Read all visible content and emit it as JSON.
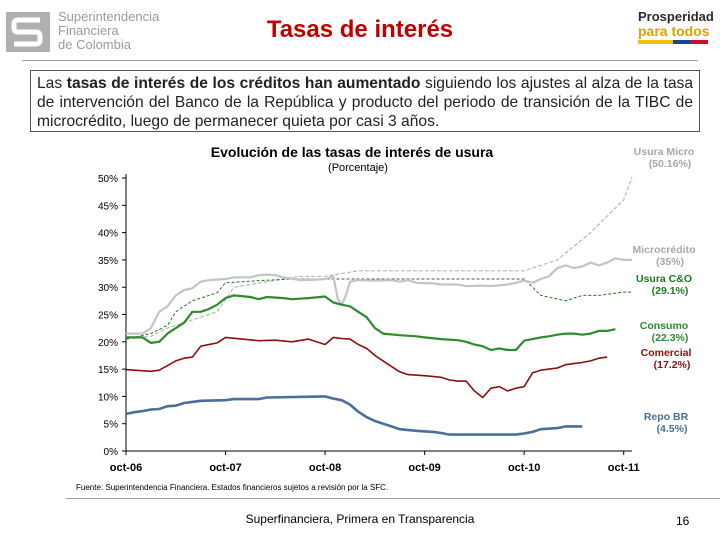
{
  "header": {
    "org_lines": [
      "Superintendencia",
      "Financiera",
      "de Colombia"
    ],
    "title": "Tasas de interés",
    "slogan_line1": "Prosperidad",
    "slogan_line2": "para todos"
  },
  "intro": {
    "part1": "Las ",
    "bold": "tasas de interés de los créditos han aumentado",
    "part2": " siguiendo los ajustes al alza de la tasa de intervención del Banco de la República y producto del periodo de transición de la TIBC de microcrédito, luego de permanecer quieta por casi 3 años."
  },
  "chart_data": {
    "type": "line",
    "title": "Evolución de las tasas de interés de usura",
    "subtitle": "(Porcentaje)",
    "xlabel": "",
    "ylabel": "",
    "ylim": [
      0,
      50
    ],
    "yticks": [
      "0%",
      "5%",
      "10%",
      "15%",
      "20%",
      "25%",
      "30%",
      "35%",
      "40%",
      "45%",
      "50%"
    ],
    "xticks": [
      "oct-06",
      "oct-07",
      "oct-08",
      "oct-09",
      "oct-10",
      "oct-11"
    ],
    "x_months_range": [
      0,
      61
    ],
    "grid": false,
    "source": "Fuente: Superintendencia Financiera. Estados financieros sujetos a revisión por la SFC.",
    "series": [
      {
        "name": "Usura Micro",
        "label_line1": "Usura Micro",
        "label_line2": "(50.16%)",
        "color": "#b8b8b8",
        "width": 1.2,
        "dash": "4,2",
        "points": [
          [
            0,
            20.5
          ],
          [
            3,
            21
          ],
          [
            5,
            22.5
          ],
          [
            7,
            23.5
          ],
          [
            9,
            24.5
          ],
          [
            11,
            25.5
          ],
          [
            13,
            30
          ],
          [
            17,
            31
          ],
          [
            21,
            32
          ],
          [
            24,
            32
          ],
          [
            28,
            33
          ],
          [
            32,
            33
          ],
          [
            36,
            33
          ],
          [
            40,
            33
          ],
          [
            44,
            33
          ],
          [
            48,
            33
          ],
          [
            52,
            35
          ],
          [
            54,
            37.5
          ],
          [
            56,
            40
          ],
          [
            58,
            43
          ],
          [
            60,
            46
          ],
          [
            61,
            50.16
          ]
        ]
      },
      {
        "name": "Usura C&O",
        "label_line1": "Usura C&O",
        "label_line2": "(29.1%)",
        "color": "#1e7a1e",
        "width": 1.0,
        "dash": "3,2",
        "points": [
          [
            0,
            20.5
          ],
          [
            3,
            21.5
          ],
          [
            5,
            23
          ],
          [
            6,
            25.5
          ],
          [
            8,
            27.5
          ],
          [
            11,
            29
          ],
          [
            12,
            30.8
          ],
          [
            16,
            31.2
          ],
          [
            20,
            31.5
          ],
          [
            24,
            31.5
          ],
          [
            28,
            31.5
          ],
          [
            32,
            31.5
          ],
          [
            36,
            31.5
          ],
          [
            40,
            31.5
          ],
          [
            44,
            31.5
          ],
          [
            48,
            31.5
          ],
          [
            50,
            28.5
          ],
          [
            53,
            27.5
          ],
          [
            55,
            28.5
          ],
          [
            57,
            28.5
          ],
          [
            60,
            29.1
          ],
          [
            61,
            29.1
          ]
        ]
      },
      {
        "name": "Microcrédito",
        "label_line1": "Microcrédito",
        "label_line2": "(35%)",
        "color": "#c4c4c4",
        "width": 2.2,
        "dash": "",
        "points": [
          [
            0,
            21.5
          ],
          [
            2,
            21.5
          ],
          [
            3,
            22.5
          ],
          [
            4,
            25.5
          ],
          [
            5,
            26.5
          ],
          [
            6,
            28.5
          ],
          [
            7,
            29.5
          ],
          [
            8,
            29.8
          ],
          [
            9,
            31
          ],
          [
            10,
            31.3
          ],
          [
            12,
            31.5
          ],
          [
            13,
            31.8
          ],
          [
            14,
            31.8
          ],
          [
            15,
            31.8
          ],
          [
            16,
            32.2
          ],
          [
            17,
            32.3
          ],
          [
            18,
            32.2
          ],
          [
            19,
            31.8
          ],
          [
            21,
            31.3
          ],
          [
            23,
            31.4
          ],
          [
            24,
            31.5
          ],
          [
            25,
            32
          ],
          [
            25.5,
            28
          ],
          [
            26,
            26.8
          ],
          [
            26.5,
            28.5
          ],
          [
            27,
            31
          ],
          [
            28,
            31.3
          ],
          [
            30,
            31.2
          ],
          [
            32,
            31.3
          ],
          [
            33,
            31
          ],
          [
            34,
            31.3
          ],
          [
            35,
            30.8
          ],
          [
            37,
            30.7
          ],
          [
            38,
            30.5
          ],
          [
            40,
            30.5
          ],
          [
            41,
            30.2
          ],
          [
            43,
            30.3
          ],
          [
            44,
            30.2
          ],
          [
            46,
            30.5
          ],
          [
            47,
            30.8
          ],
          [
            48,
            31.2
          ],
          [
            49,
            30.8
          ],
          [
            50,
            31.5
          ],
          [
            51,
            32
          ],
          [
            52,
            33.5
          ],
          [
            53,
            34
          ],
          [
            54,
            33.5
          ],
          [
            55,
            33.8
          ],
          [
            56,
            34.5
          ],
          [
            57,
            34
          ],
          [
            58,
            34.5
          ],
          [
            59,
            35.3
          ],
          [
            60,
            35
          ],
          [
            61,
            35
          ]
        ]
      },
      {
        "name": "Consumo",
        "label_line1": "Consumo",
        "label_line2": "(22.3%)",
        "color": "#2e8b2e",
        "width": 2.2,
        "dash": "",
        "points": [
          [
            0,
            20.8
          ],
          [
            2,
            20.8
          ],
          [
            3,
            19.8
          ],
          [
            4,
            20
          ],
          [
            5,
            21.5
          ],
          [
            6,
            22.5
          ],
          [
            7,
            23.5
          ],
          [
            8,
            25.5
          ],
          [
            9,
            25.5
          ],
          [
            10,
            26
          ],
          [
            11,
            26.8
          ],
          [
            12,
            28
          ],
          [
            13,
            28.5
          ],
          [
            15,
            28.2
          ],
          [
            16,
            27.8
          ],
          [
            17,
            28.2
          ],
          [
            19,
            28
          ],
          [
            20,
            27.8
          ],
          [
            22,
            28
          ],
          [
            24,
            28.3
          ],
          [
            25,
            27.2
          ],
          [
            26,
            26.8
          ],
          [
            27,
            26.5
          ],
          [
            28,
            25.5
          ],
          [
            29,
            24.5
          ],
          [
            30,
            22.5
          ],
          [
            31,
            21.5
          ],
          [
            33,
            21.2
          ],
          [
            35,
            21
          ],
          [
            36,
            20.8
          ],
          [
            38,
            20.5
          ],
          [
            40,
            20.3
          ],
          [
            41,
            20
          ],
          [
            42,
            19.5
          ],
          [
            43,
            19.2
          ],
          [
            44,
            18.5
          ],
          [
            45,
            18.8
          ],
          [
            46,
            18.5
          ],
          [
            47,
            18.5
          ],
          [
            48,
            20.2
          ],
          [
            49,
            20.5
          ],
          [
            50,
            20.8
          ],
          [
            51,
            21
          ],
          [
            52,
            21.3
          ],
          [
            53,
            21.5
          ],
          [
            54,
            21.5
          ],
          [
            55,
            21.3
          ],
          [
            56,
            21.5
          ],
          [
            57,
            22
          ],
          [
            58,
            22
          ],
          [
            59,
            22.3
          ]
        ]
      },
      {
        "name": "Comercial",
        "label_line1": "Comercial",
        "label_line2": "(17.2%)",
        "color": "#8b1010",
        "width": 1.6,
        "dash": "",
        "points": [
          [
            0,
            14.9
          ],
          [
            3,
            14.6
          ],
          [
            4,
            14.8
          ],
          [
            6,
            16.5
          ],
          [
            7,
            17
          ],
          [
            8,
            17.2
          ],
          [
            9,
            19.2
          ],
          [
            11,
            19.8
          ],
          [
            12,
            20.8
          ],
          [
            14,
            20.5
          ],
          [
            16,
            20.2
          ],
          [
            18,
            20.3
          ],
          [
            20,
            20
          ],
          [
            22,
            20.5
          ],
          [
            24,
            19.5
          ],
          [
            25,
            20.8
          ],
          [
            26,
            20.6
          ],
          [
            27,
            20.5
          ],
          [
            28,
            19.5
          ],
          [
            29,
            18.8
          ],
          [
            30,
            17.5
          ],
          [
            31,
            16.5
          ],
          [
            32,
            15.5
          ],
          [
            33,
            14.5
          ],
          [
            34,
            14
          ],
          [
            36,
            13.8
          ],
          [
            38,
            13.5
          ],
          [
            39,
            13
          ],
          [
            40,
            12.8
          ],
          [
            41,
            12.8
          ],
          [
            42,
            11
          ],
          [
            43,
            9.8
          ],
          [
            44,
            11.5
          ],
          [
            45,
            11.8
          ],
          [
            46,
            11
          ],
          [
            47,
            11.5
          ],
          [
            48,
            11.8
          ],
          [
            49,
            14.3
          ],
          [
            50,
            14.8
          ],
          [
            51,
            15
          ],
          [
            52,
            15.2
          ],
          [
            53,
            15.8
          ],
          [
            54,
            16
          ],
          [
            55,
            16.2
          ],
          [
            56,
            16.5
          ],
          [
            57,
            17
          ],
          [
            58,
            17.2
          ]
        ]
      },
      {
        "name": "Repo BR",
        "label_line1": "Repo BR",
        "label_line2": "(4.5%)",
        "color": "#4a6f9a",
        "width": 2.6,
        "dash": "",
        "points": [
          [
            0,
            6.8
          ],
          [
            1,
            7.1
          ],
          [
            2,
            7.3
          ],
          [
            3,
            7.6
          ],
          [
            4,
            7.7
          ],
          [
            5,
            8.2
          ],
          [
            6,
            8.3
          ],
          [
            7,
            8.8
          ],
          [
            8,
            9.0
          ],
          [
            9,
            9.2
          ],
          [
            12,
            9.3
          ],
          [
            13,
            9.5
          ],
          [
            16,
            9.5
          ],
          [
            17,
            9.8
          ],
          [
            24,
            10
          ],
          [
            25,
            9.6
          ],
          [
            26,
            9.3
          ],
          [
            27,
            8.5
          ],
          [
            28,
            7.2
          ],
          [
            29,
            6.2
          ],
          [
            30,
            5.5
          ],
          [
            31,
            5.0
          ],
          [
            32,
            4.5
          ],
          [
            33,
            4.0
          ],
          [
            35,
            3.7
          ],
          [
            37,
            3.5
          ],
          [
            38,
            3.3
          ],
          [
            39,
            3.0
          ],
          [
            47,
            3.0
          ],
          [
            48,
            3.2
          ],
          [
            49,
            3.5
          ],
          [
            50,
            4.0
          ],
          [
            52,
            4.2
          ],
          [
            53,
            4.5
          ],
          [
            55,
            4.5
          ]
        ]
      }
    ]
  },
  "footer": {
    "text": "Superfinanciera, Primera en Transparencia",
    "page": "16"
  }
}
